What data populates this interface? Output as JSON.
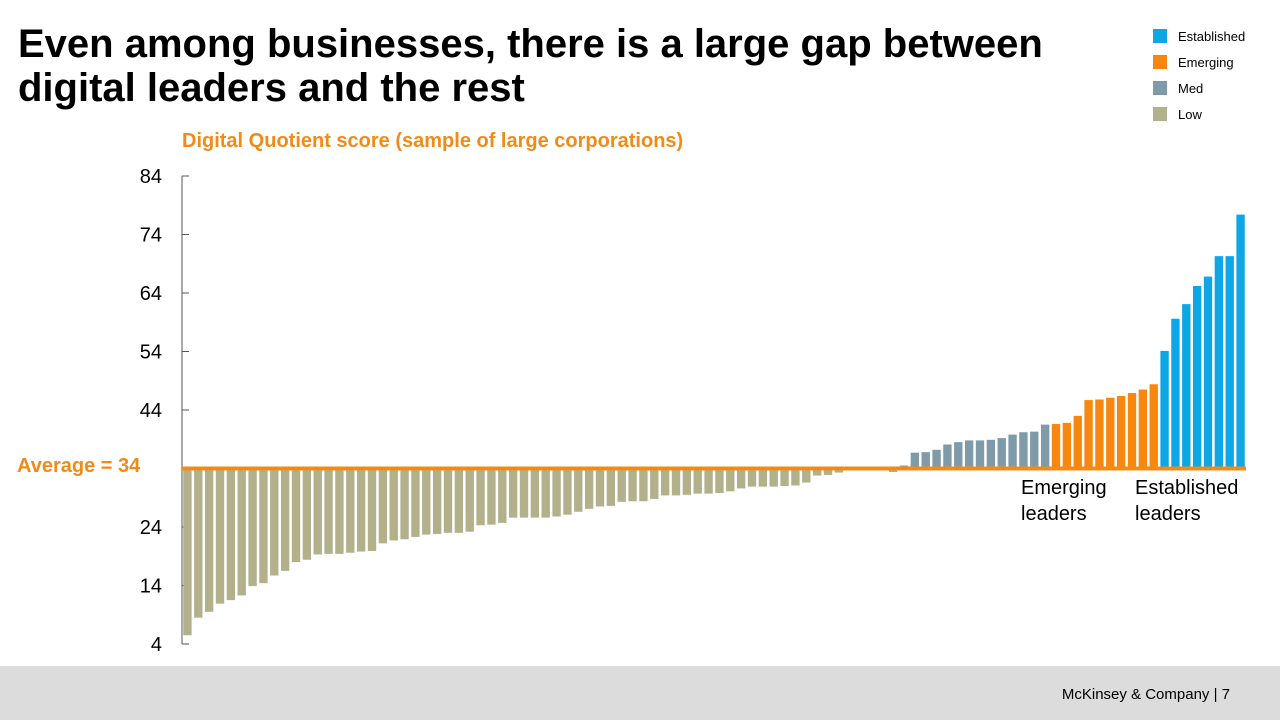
{
  "slide": {
    "title": "Even among businesses, there is a large gap between digital leaders and the rest",
    "footer": "McKinsey & Company  |  7"
  },
  "legend": [
    {
      "label": "Established",
      "color": "#0ea7e6"
    },
    {
      "label": "Emerging",
      "color": "#f7870f"
    },
    {
      "label": "Med",
      "color": "#7f9aa8"
    },
    {
      "label": "Low",
      "color": "#b2b18c"
    }
  ],
  "annotations": {
    "average": "Average = 34",
    "emerging": "Emerging\nleaders",
    "established": "Established\nleaders"
  },
  "chart_data": {
    "type": "bar",
    "title": "Digital Quotient score (sample of large corporations)",
    "baseline": 34,
    "ylim": [
      4,
      84
    ],
    "yticks": [
      84,
      74,
      64,
      54,
      44,
      24,
      14,
      4
    ],
    "series": [
      {
        "name": "Low",
        "color": "#b2b18c",
        "values": [
          5.5,
          8.5,
          9.5,
          10.9,
          11.5,
          12.3,
          13.9,
          14.4,
          15.7,
          16.5,
          18.0,
          18.4,
          19.3,
          19.4,
          19.4,
          19.6,
          19.8,
          19.9,
          21.2,
          21.7,
          21.9,
          22.3,
          22.7,
          22.8,
          23.0,
          23.0,
          23.2,
          24.3,
          24.4,
          24.7,
          25.6,
          25.6,
          25.6,
          25.6,
          25.8,
          26.1,
          26.6,
          27.1,
          27.5,
          27.6,
          28.3,
          28.4,
          28.4,
          28.8,
          29.4,
          29.4,
          29.5,
          29.7,
          29.7,
          29.8,
          30.1,
          30.6,
          30.9,
          30.9,
          30.9,
          31.0,
          31.1,
          31.6,
          32.8,
          32.9,
          33.3,
          34.0,
          34.0,
          34.0,
          34.0,
          33.4
        ]
      },
      {
        "name": "Med",
        "color": "#7f9aa8",
        "values": [
          34.5,
          36.7,
          36.8,
          37.2,
          38.1,
          38.5,
          38.8,
          38.8,
          38.9,
          39.2,
          39.8,
          40.2,
          40.3,
          41.5
        ]
      },
      {
        "name": "Emerging",
        "color": "#f7870f",
        "values": [
          41.6,
          41.8,
          43.0,
          45.7,
          45.8,
          46.1,
          46.4,
          46.9,
          47.5,
          48.4
        ]
      },
      {
        "name": "Established",
        "color": "#0ea7e6",
        "values": [
          54.1,
          59.6,
          62.1,
          65.2,
          66.8,
          70.3,
          70.3,
          77.4
        ]
      }
    ]
  }
}
